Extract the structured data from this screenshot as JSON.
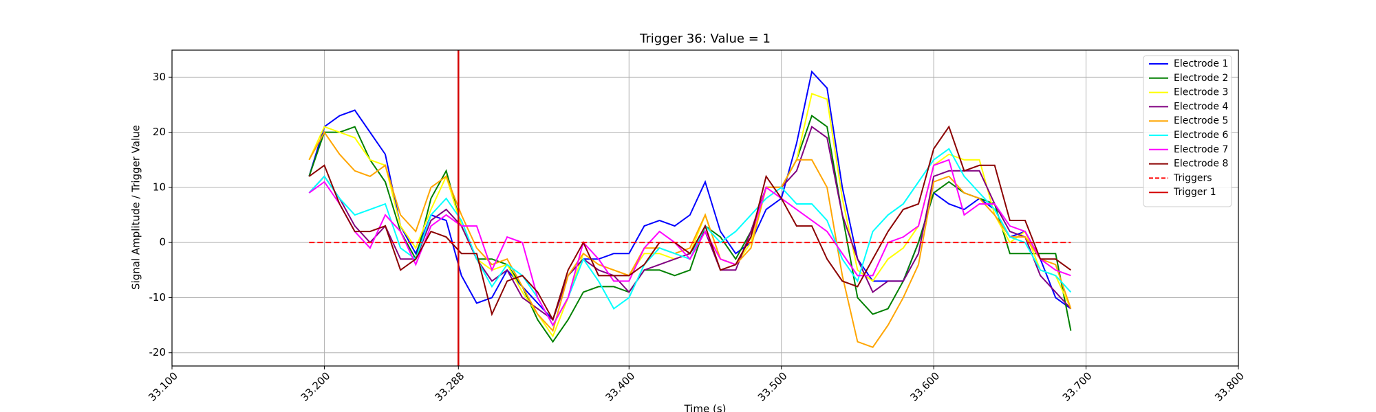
{
  "chart_data": {
    "type": "line",
    "title": "Trigger 36: Value = 1",
    "x_label": "Time (s)",
    "y_label": "Signal Amplitude / Trigger Value",
    "xlim": [
      33.1,
      33.8
    ],
    "ylim": [
      -22.4,
      34.9
    ],
    "xticks": [
      {
        "value": 33.1,
        "label": "33.100"
      },
      {
        "value": 33.2,
        "label": "33.200"
      },
      {
        "value": 33.288,
        "label": "33.288"
      },
      {
        "value": 33.4,
        "label": "33.400"
      },
      {
        "value": 33.5,
        "label": "33.500"
      },
      {
        "value": 33.6,
        "label": "33.600"
      },
      {
        "value": 33.7,
        "label": "33.700"
      },
      {
        "value": 33.8,
        "label": "33.800"
      }
    ],
    "yticks": [
      -20,
      -10,
      0,
      10,
      20,
      30
    ],
    "grid": true,
    "legend": "upper right",
    "x": [
      33.19,
      33.2,
      33.21,
      33.22,
      33.23,
      33.24,
      33.25,
      33.26,
      33.27,
      33.28,
      33.29,
      33.3,
      33.31,
      33.32,
      33.33,
      33.34,
      33.35,
      33.36,
      33.37,
      33.38,
      33.39,
      33.4,
      33.41,
      33.42,
      33.43,
      33.44,
      33.45,
      33.46,
      33.47,
      33.48,
      33.49,
      33.5,
      33.51,
      33.52,
      33.53,
      33.54,
      33.55,
      33.56,
      33.57,
      33.58,
      33.59,
      33.6,
      33.61,
      33.62,
      33.63,
      33.64,
      33.65,
      33.66,
      33.67,
      33.68,
      33.69
    ],
    "series": [
      {
        "name": "Electrode 1",
        "color": "blue",
        "values": [
          12,
          21,
          23,
          24,
          20,
          16,
          3,
          -2,
          5,
          4,
          -6,
          -11,
          -10,
          -5,
          -8,
          -11,
          -14,
          -6,
          -3,
          -3,
          -2,
          -2,
          3,
          4,
          3,
          5,
          11,
          2,
          -2,
          0,
          6,
          8,
          18,
          31,
          28,
          10,
          -3,
          -7,
          -7,
          -7,
          0,
          9,
          7,
          6,
          8,
          6,
          1,
          2,
          -3,
          -10,
          -12
        ]
      },
      {
        "name": "Electrode 2",
        "color": "green",
        "values": [
          12,
          20,
          20,
          21,
          15,
          11,
          2,
          -3,
          8,
          13,
          3,
          -3,
          -3,
          -4,
          -8,
          -14,
          -18,
          -14,
          -9,
          -8,
          -8,
          -9,
          -5,
          -5,
          -6,
          -5,
          3,
          1,
          -3,
          2,
          10,
          10,
          15,
          23,
          21,
          5,
          -10,
          -13,
          -12,
          -7,
          0,
          9,
          11,
          9,
          8,
          7,
          -2,
          -2,
          -2,
          -2,
          -16
        ]
      },
      {
        "name": "Electrode 3",
        "color": "yellow",
        "values": [
          15,
          21,
          20,
          19,
          15,
          14,
          3,
          -1,
          6,
          12,
          3,
          -3,
          -5,
          -4,
          -9,
          -13,
          -17,
          -10,
          -2,
          -4,
          -5,
          -6,
          -2,
          -2,
          -3,
          -2,
          5,
          -3,
          -4,
          0,
          10,
          10,
          15,
          27,
          26,
          8,
          -5,
          -7,
          -3,
          -1,
          3,
          14,
          16,
          15,
          15,
          5,
          0,
          2,
          -5,
          -6,
          -12
        ]
      },
      {
        "name": "Electrode 4",
        "color": "purple",
        "values": [
          9,
          12,
          8,
          3,
          0,
          3,
          -3,
          -3,
          4,
          6,
          3,
          -3,
          -7,
          -5,
          -10,
          -12,
          -14,
          -6,
          -3,
          -5,
          -6,
          -9,
          -5,
          -4,
          -3,
          -2,
          2,
          -5,
          -5,
          2,
          10,
          10,
          13,
          21,
          19,
          5,
          -3,
          -9,
          -7,
          -7,
          -2,
          12,
          13,
          13,
          13,
          7,
          2,
          1,
          -6,
          -9,
          -12
        ]
      },
      {
        "name": "Electrode 5",
        "color": "orange",
        "values": [
          15,
          20,
          16,
          13,
          12,
          14,
          5,
          2,
          10,
          12,
          5,
          -1,
          -4,
          -3,
          -8,
          -13,
          -16,
          -6,
          -2,
          -4,
          -5,
          -6,
          -1,
          -1,
          -2,
          -1,
          5,
          -3,
          -4,
          -1,
          10,
          10,
          15,
          15,
          10,
          -6,
          -18,
          -19,
          -15,
          -10,
          -4,
          11,
          12,
          9,
          8,
          5,
          1,
          1,
          -3,
          -4,
          -12
        ]
      },
      {
        "name": "Electrode 6",
        "color": "cyan",
        "values": [
          9,
          12,
          8,
          5,
          6,
          7,
          -1,
          -3,
          5,
          8,
          4,
          -3,
          -8,
          -4,
          -6,
          -10,
          -15,
          -10,
          -3,
          -7,
          -12,
          -10,
          -4,
          -1,
          -2,
          -3,
          3,
          0,
          2,
          5,
          8,
          10,
          7,
          7,
          4,
          -3,
          -7,
          2,
          5,
          7,
          11,
          15,
          17,
          12,
          9,
          6,
          1,
          0,
          -5,
          -6,
          -9
        ]
      },
      {
        "name": "Electrode 7",
        "color": "magenta",
        "values": [
          9,
          11,
          7,
          2,
          -1,
          5,
          2,
          -4,
          3,
          5,
          3,
          3,
          -5,
          1,
          0,
          -10,
          -15,
          -10,
          0,
          -3,
          -7,
          -7,
          -1,
          2,
          0,
          -3,
          2,
          -3,
          -4,
          1,
          10,
          8,
          6,
          4,
          2,
          -2,
          -6,
          -6,
          0,
          1,
          3,
          14,
          15,
          5,
          7,
          7,
          3,
          2,
          -3,
          -5,
          -6
        ]
      },
      {
        "name": "Electrode 8",
        "color": "darkred",
        "values": [
          12,
          14,
          7,
          2,
          2,
          3,
          -5,
          -3,
          2,
          1,
          -2,
          -2,
          -13,
          -7,
          -6,
          -9,
          -14,
          -5,
          0,
          -6,
          -6,
          -6,
          -4,
          0,
          0,
          -2,
          3,
          -5,
          -4,
          1,
          12,
          8,
          3,
          3,
          -3,
          -7,
          -8,
          -3,
          2,
          6,
          7,
          17,
          21,
          13,
          14,
          14,
          4,
          4,
          -3,
          -3,
          -5
        ]
      }
    ],
    "trigger_baseline": {
      "name": "Triggers",
      "color": "red",
      "dashed": true,
      "x": [
        33.19,
        33.69
      ],
      "values": [
        0,
        0
      ]
    },
    "trigger_markers": [
      {
        "name": "Trigger 1",
        "color": "#d40000",
        "x": 33.288
      }
    ]
  }
}
